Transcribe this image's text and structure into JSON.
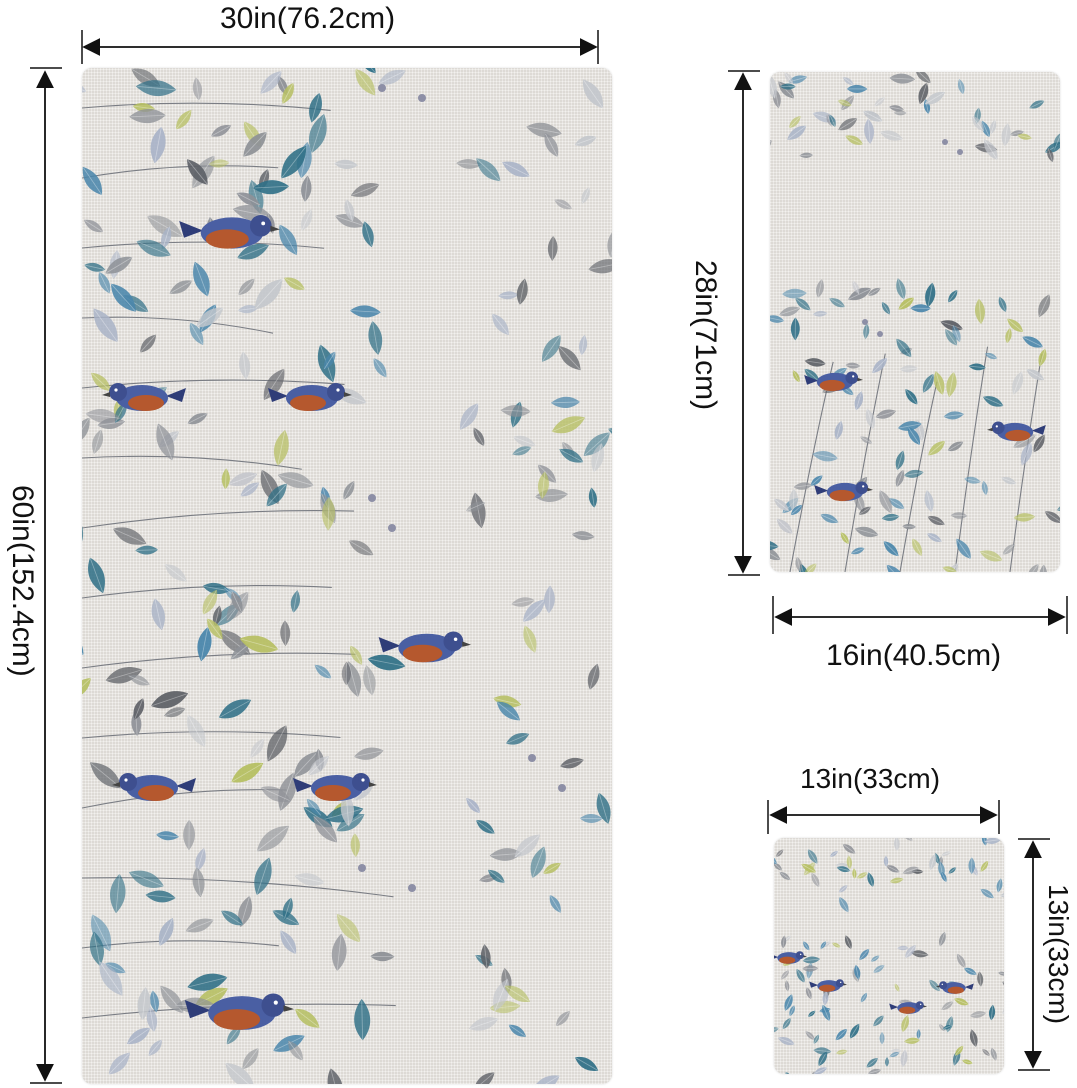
{
  "dimensions": {
    "bath_width": "30in(76.2cm)",
    "bath_height": "60in(152.4cm)",
    "hand_height": "28in(71cm)",
    "hand_width": "16in(40.5cm)",
    "wash_width": "13in(33cm)",
    "wash_height": "13in(33cm)"
  },
  "palette": {
    "linen": "#e9e6e1",
    "teal_leaf": "#2f6f86",
    "blue_leaf": "#4a86ab",
    "gray_leaf": "#8e9197",
    "dark_gray_leaf": "#5d6066",
    "olive_leaf": "#b6bf62",
    "bird_rust": "#b5582e",
    "bird_blue": "#4a5fa3"
  }
}
